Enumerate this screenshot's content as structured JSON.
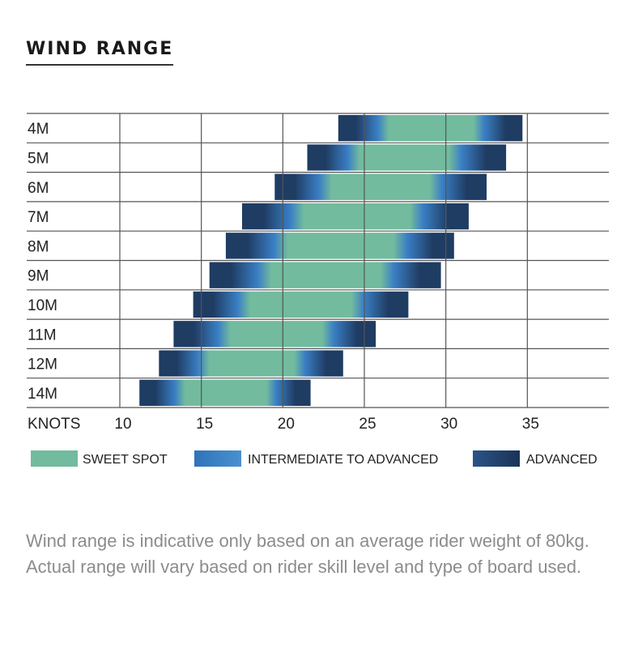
{
  "page": {
    "title": "WIND RANGE",
    "note": "Wind range is indicative only based on an average rider weight of 80kg. Actual range will vary based on rider skill level and type of board used."
  },
  "chart_data": {
    "type": "bar",
    "orientation": "horizontal-range",
    "title": "WIND RANGE",
    "xlabel": "KNOTS",
    "xlim": [
      10,
      40
    ],
    "xticks": [
      10,
      15,
      20,
      25,
      30,
      35
    ],
    "grid": true,
    "legend_position": "bottom",
    "colors": {
      "sweet": "#72bb9e",
      "intermediate": "#3a7fc4",
      "advanced": "#1f3c63",
      "grid": "#555555"
    },
    "series": [
      {
        "name": "SWEET SPOT"
      },
      {
        "name": "INTERMEDIATE TO ADVANCED"
      },
      {
        "name": "ADVANCED"
      }
    ],
    "categories": [
      "4M",
      "5M",
      "6M",
      "7M",
      "8M",
      "9M",
      "10M",
      "11M",
      "12M",
      "14M"
    ],
    "ranges": [
      {
        "size": "4M",
        "min": 23.4,
        "sweet_start": 26.5,
        "sweet_end": 31.7,
        "max": 34.7
      },
      {
        "size": "5M",
        "min": 21.5,
        "sweet_start": 24.7,
        "sweet_end": 30.2,
        "max": 33.7
      },
      {
        "size": "6M",
        "min": 19.5,
        "sweet_start": 23.0,
        "sweet_end": 29.0,
        "max": 32.5
      },
      {
        "size": "7M",
        "min": 17.5,
        "sweet_start": 21.3,
        "sweet_end": 27.8,
        "max": 31.4
      },
      {
        "size": "8M",
        "min": 16.5,
        "sweet_start": 20.3,
        "sweet_end": 26.8,
        "max": 30.5
      },
      {
        "size": "9M",
        "min": 15.5,
        "sweet_start": 19.3,
        "sweet_end": 26.0,
        "max": 29.7
      },
      {
        "size": "10M",
        "min": 14.5,
        "sweet_start": 18.0,
        "sweet_end": 24.2,
        "max": 27.7
      },
      {
        "size": "11M",
        "min": 13.3,
        "sweet_start": 16.8,
        "sweet_end": 22.4,
        "max": 25.7
      },
      {
        "size": "12M",
        "min": 12.4,
        "sweet_start": 15.5,
        "sweet_end": 20.7,
        "max": 23.7
      },
      {
        "size": "14M",
        "min": 11.2,
        "sweet_start": 14.0,
        "sweet_end": 19.0,
        "max": 21.7
      }
    ]
  }
}
